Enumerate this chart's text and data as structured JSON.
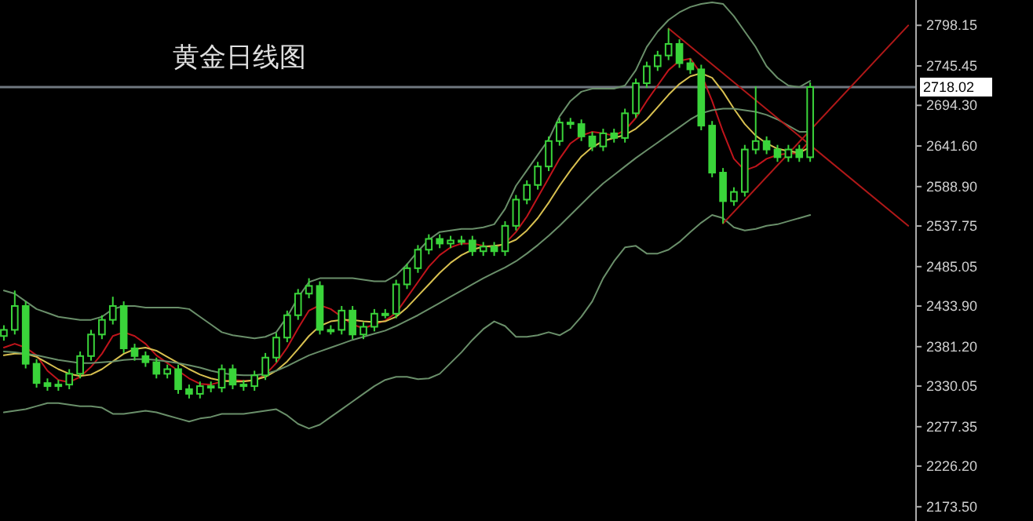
{
  "chart_data": {
    "type": "candlestick",
    "title": "黄金日线图",
    "color": "#3ad43a",
    "categories": [
      null,
      null,
      null,
      null,
      null,
      null,
      null,
      null,
      null,
      null,
      null,
      null,
      null,
      null,
      null,
      null,
      null,
      null,
      null,
      null,
      null,
      null,
      null,
      null,
      null,
      null,
      null,
      null,
      null,
      null,
      null,
      null,
      null,
      null,
      null,
      null,
      null,
      null,
      null,
      null,
      null,
      null,
      null,
      null,
      null,
      null,
      null,
      null,
      null,
      null,
      null,
      null,
      null,
      null,
      null,
      null,
      null,
      null,
      null,
      null,
      null,
      null,
      null,
      null,
      null,
      null,
      null,
      null,
      null,
      null,
      null,
      null,
      null,
      null,
      null,
      null,
      null,
      null,
      null,
      null,
      null,
      null,
      null,
      null
    ],
    "ohlc": [
      [
        2395,
        2409,
        2389,
        2403
      ],
      [
        2403,
        2454,
        2397,
        2434
      ],
      [
        2434,
        2440,
        2353,
        2359
      ],
      [
        2359,
        2365,
        2328,
        2334
      ],
      [
        2334,
        2340,
        2324,
        2330
      ],
      [
        2330,
        2338,
        2324,
        2332
      ],
      [
        2332,
        2352,
        2326,
        2346
      ],
      [
        2346,
        2375,
        2340,
        2369
      ],
      [
        2369,
        2403,
        2363,
        2397
      ],
      [
        2397,
        2422,
        2391,
        2416
      ],
      [
        2416,
        2446,
        2410,
        2434
      ],
      [
        2434,
        2440,
        2373,
        2379
      ],
      [
        2379,
        2385,
        2363,
        2369
      ],
      [
        2369,
        2375,
        2355,
        2361
      ],
      [
        2361,
        2367,
        2340,
        2346
      ],
      [
        2346,
        2358,
        2340,
        2352
      ],
      [
        2352,
        2358,
        2320,
        2326
      ],
      [
        2326,
        2332,
        2314,
        2320
      ],
      [
        2320,
        2336,
        2314,
        2330
      ],
      [
        2330,
        2336,
        2322,
        2328
      ],
      [
        2328,
        2358,
        2322,
        2352
      ],
      [
        2352,
        2358,
        2326,
        2332
      ],
      [
        2332,
        2338,
        2324,
        2330
      ],
      [
        2330,
        2350,
        2324,
        2344
      ],
      [
        2344,
        2373,
        2338,
        2367
      ],
      [
        2367,
        2399,
        2361,
        2393
      ],
      [
        2393,
        2428,
        2387,
        2422
      ],
      [
        2422,
        2456,
        2416,
        2450
      ],
      [
        2450,
        2470,
        2444,
        2460
      ],
      [
        2460,
        2466,
        2397,
        2403
      ],
      [
        2403,
        2409,
        2397,
        2403
      ],
      [
        2403,
        2434,
        2397,
        2428
      ],
      [
        2428,
        2434,
        2391,
        2397
      ],
      [
        2397,
        2413,
        2391,
        2407
      ],
      [
        2407,
        2430,
        2401,
        2424
      ],
      [
        2424,
        2430,
        2418,
        2424
      ],
      [
        2424,
        2468,
        2418,
        2462
      ],
      [
        2462,
        2489,
        2456,
        2483
      ],
      [
        2483,
        2513,
        2477,
        2507
      ],
      [
        2507,
        2527,
        2501,
        2521
      ],
      [
        2521,
        2527,
        2509,
        2515
      ],
      [
        2515,
        2525,
        2509,
        2519
      ],
      [
        2519,
        2525,
        2513,
        2519
      ],
      [
        2519,
        2525,
        2499,
        2505
      ],
      [
        2505,
        2517,
        2499,
        2511
      ],
      [
        2511,
        2517,
        2499,
        2505
      ],
      [
        2505,
        2544,
        2499,
        2538
      ],
      [
        2538,
        2578,
        2532,
        2572
      ],
      [
        2572,
        2597,
        2566,
        2591
      ],
      [
        2591,
        2621,
        2585,
        2615
      ],
      [
        2615,
        2654,
        2609,
        2648
      ],
      [
        2648,
        2678,
        2642,
        2672
      ],
      [
        2672,
        2678,
        2664,
        2670
      ],
      [
        2670,
        2676,
        2648,
        2654
      ],
      [
        2654,
        2660,
        2635,
        2641
      ],
      [
        2641,
        2664,
        2635,
        2658
      ],
      [
        2658,
        2664,
        2646,
        2652
      ],
      [
        2652,
        2690,
        2646,
        2684
      ],
      [
        2684,
        2729,
        2678,
        2723
      ],
      [
        2723,
        2751,
        2717,
        2745
      ],
      [
        2745,
        2765,
        2739,
        2759
      ],
      [
        2759,
        2794,
        2753,
        2774
      ],
      [
        2774,
        2780,
        2743,
        2749
      ],
      [
        2749,
        2755,
        2735,
        2741
      ],
      [
        2741,
        2747,
        2662,
        2668
      ],
      [
        2668,
        2674,
        2601,
        2607
      ],
      [
        2607,
        2613,
        2541,
        2570
      ],
      [
        2570,
        2588,
        2564,
        2582
      ],
      [
        2582,
        2643,
        2576,
        2637
      ],
      [
        2637,
        2719,
        2631,
        2648
      ],
      [
        2648,
        2654,
        2631,
        2637
      ],
      [
        2637,
        2643,
        2621,
        2627
      ],
      [
        2627,
        2643,
        2621,
        2637
      ],
      [
        2637,
        2643,
        2621,
        2627
      ],
      [
        2627,
        2724,
        2621,
        2718
      ],
      null,
      null,
      null,
      null,
      null,
      null,
      null,
      null,
      null
    ],
    "series": [
      {
        "type": "line",
        "color": "#c0141b",
        "values": [
          2380,
          2385,
          2380,
          2370,
          2350,
          2338,
          2335,
          2342,
          2355,
          2372,
          2395,
          2400,
          2395,
          2385,
          2370,
          2360,
          2350,
          2340,
          2333,
          2332,
          2336,
          2338,
          2337,
          2337,
          2345,
          2360,
          2380,
          2405,
          2428,
          2435,
          2430,
          2420,
          2410,
          2405,
          2410,
          2415,
          2425,
          2445,
          2465,
          2485,
          2500,
          2510,
          2515,
          2515,
          2512,
          2510,
          2515,
          2530,
          2550,
          2575,
          2600,
          2625,
          2645,
          2655,
          2660,
          2658,
          2655,
          2662,
          2678,
          2700,
          2720,
          2740,
          2752,
          2755,
          2735,
          2700,
          2660,
          2625,
          2610,
          2615,
          2625,
          2630,
          2632,
          2632,
          2650,
          null,
          null,
          null,
          null,
          null,
          null,
          null,
          null,
          null
        ]
      },
      {
        "type": "line",
        "color": "#d8c050",
        "values": [
          2370,
          2372,
          2372,
          2368,
          2360,
          2352,
          2346,
          2343,
          2345,
          2352,
          2362,
          2372,
          2378,
          2380,
          2376,
          2368,
          2360,
          2352,
          2345,
          2340,
          2337,
          2336,
          2336,
          2338,
          2342,
          2350,
          2362,
          2378,
          2395,
          2408,
          2414,
          2416,
          2416,
          2414,
          2413,
          2414,
          2420,
          2432,
          2447,
          2462,
          2477,
          2490,
          2500,
          2507,
          2511,
          2512,
          2514,
          2520,
          2532,
          2548,
          2568,
          2590,
          2610,
          2628,
          2640,
          2648,
          2652,
          2656,
          2664,
          2676,
          2692,
          2708,
          2722,
          2732,
          2736,
          2730,
          2712,
          2690,
          2670,
          2655,
          2645,
          2638,
          2635,
          2633,
          2640,
          null,
          null,
          null,
          null,
          null,
          null,
          null,
          null,
          null
        ]
      },
      {
        "type": "line",
        "color": "#6a8f6a",
        "values": [
          2375,
          2374,
          2372,
          2370,
          2367,
          2364,
          2362,
          2360,
          2360,
          2361,
          2362,
          2364,
          2365,
          2365,
          2364,
          2362,
          2360,
          2357,
          2354,
          2350,
          2347,
          2345,
          2344,
          2344,
          2346,
          2350,
          2356,
          2363,
          2370,
          2375,
          2380,
          2385,
          2390,
          2394,
          2398,
          2402,
          2408,
          2415,
          2422,
          2430,
          2438,
          2446,
          2454,
          2462,
          2470,
          2477,
          2484,
          2492,
          2502,
          2513,
          2525,
          2538,
          2552,
          2566,
          2580,
          2593,
          2604,
          2615,
          2626,
          2636,
          2646,
          2656,
          2666,
          2676,
          2684,
          2688,
          2690,
          2690,
          2688,
          2686,
          2682,
          2676,
          2668,
          2660,
          2660,
          null,
          null,
          null,
          null,
          null,
          null,
          null,
          null,
          null
        ]
      },
      {
        "type": "line",
        "color": "#6a8f6a",
        "values": [
          2454,
          2450,
          2440,
          2430,
          2425,
          2420,
          2418,
          2416,
          2416,
          2420,
          2430,
          2434,
          2434,
          2432,
          2432,
          2432,
          2432,
          2430,
          2420,
          2410,
          2400,
          2396,
          2394,
          2392,
          2394,
          2400,
          2420,
          2445,
          2465,
          2470,
          2470,
          2470,
          2470,
          2468,
          2466,
          2466,
          2474,
          2488,
          2505,
          2520,
          2530,
          2532,
          2534,
          2534,
          2536,
          2540,
          2560,
          2590,
          2610,
          2630,
          2650,
          2680,
          2700,
          2712,
          2716,
          2716,
          2716,
          2720,
          2740,
          2770,
          2790,
          2805,
          2815,
          2822,
          2826,
          2828,
          2826,
          2810,
          2790,
          2770,
          2745,
          2730,
          2720,
          2718,
          2726,
          null,
          null,
          null,
          null,
          null,
          null,
          null,
          null,
          null
        ]
      },
      {
        "type": "line",
        "color": "#6a8f6a",
        "values": [
          2296,
          2298,
          2300,
          2304,
          2308,
          2308,
          2306,
          2304,
          2304,
          2302,
          2294,
          2294,
          2296,
          2298,
          2296,
          2292,
          2288,
          2284,
          2288,
          2290,
          2294,
          2294,
          2294,
          2296,
          2298,
          2300,
          2292,
          2281,
          2275,
          2280,
          2290,
          2300,
          2310,
          2320,
          2330,
          2338,
          2342,
          2342,
          2339,
          2340,
          2346,
          2360,
          2374,
          2390,
          2404,
          2414,
          2408,
          2394,
          2394,
          2396,
          2400,
          2396,
          2404,
          2420,
          2440,
          2470,
          2492,
          2510,
          2512,
          2502,
          2502,
          2507,
          2517,
          2530,
          2542,
          2552,
          2548,
          2536,
          2532,
          2534,
          2538,
          2540,
          2544,
          2548,
          2552,
          null,
          null,
          null,
          null,
          null,
          null,
          null,
          null,
          null
        ]
      },
      {
        "type": "line",
        "color": "#b01818",
        "values": [
          null,
          null,
          null,
          null,
          null,
          null,
          null,
          null,
          null,
          null,
          null,
          null,
          null,
          null,
          null,
          null,
          null,
          null,
          null,
          null,
          null,
          null,
          null,
          null,
          null,
          null,
          null,
          null,
          null,
          null,
          null,
          null,
          null,
          null,
          null,
          null,
          null,
          null,
          null,
          null,
          null,
          null,
          null,
          null,
          null,
          null,
          null,
          null,
          null,
          null,
          null,
          null,
          null,
          null,
          null,
          null,
          null,
          null,
          null,
          null,
          null,
          2794,
          null,
          null,
          null,
          null,
          null,
          null,
          null,
          null,
          null,
          null,
          null,
          null,
          null,
          null,
          null,
          null,
          null,
          null,
          null,
          null,
          null,
          2538
        ]
      },
      {
        "type": "line",
        "color": "#b01818",
        "values": [
          null,
          null,
          null,
          null,
          null,
          null,
          null,
          null,
          null,
          null,
          null,
          null,
          null,
          null,
          null,
          null,
          null,
          null,
          null,
          null,
          null,
          null,
          null,
          null,
          null,
          null,
          null,
          null,
          null,
          null,
          null,
          null,
          null,
          null,
          null,
          null,
          null,
          null,
          null,
          null,
          null,
          null,
          null,
          null,
          null,
          null,
          null,
          null,
          null,
          null,
          null,
          null,
          null,
          null,
          null,
          null,
          null,
          null,
          null,
          null,
          null,
          null,
          null,
          null,
          null,
          null,
          2541,
          null,
          null,
          null,
          null,
          null,
          null,
          null,
          null,
          null,
          null,
          null,
          null,
          null,
          null,
          null,
          null,
          2798
        ]
      }
    ],
    "ref_lines": [
      {
        "axis": "y",
        "value": 2718.02,
        "label": "2718.02",
        "color": "#707880"
      }
    ],
    "ylim": [
      2155,
      2831
    ],
    "yticks": [
      2798.15,
      2745.45,
      {
        "value": 2694.3,
        "label": "2694.30"
      },
      {
        "value": 2641.6,
        "label": "2641.60"
      },
      {
        "value": 2588.9,
        "label": "2588.90"
      },
      2537.75,
      2485.05,
      {
        "value": 2433.9,
        "label": "2433.90"
      },
      {
        "value": 2381.2,
        "label": "2381.20"
      },
      2330.05,
      2277.35,
      {
        "value": 2226.2,
        "label": "2226.20"
      },
      {
        "value": 2173.5,
        "label": "2173.50"
      }
    ],
    "tick_labels": "y",
    "grid": false
  }
}
